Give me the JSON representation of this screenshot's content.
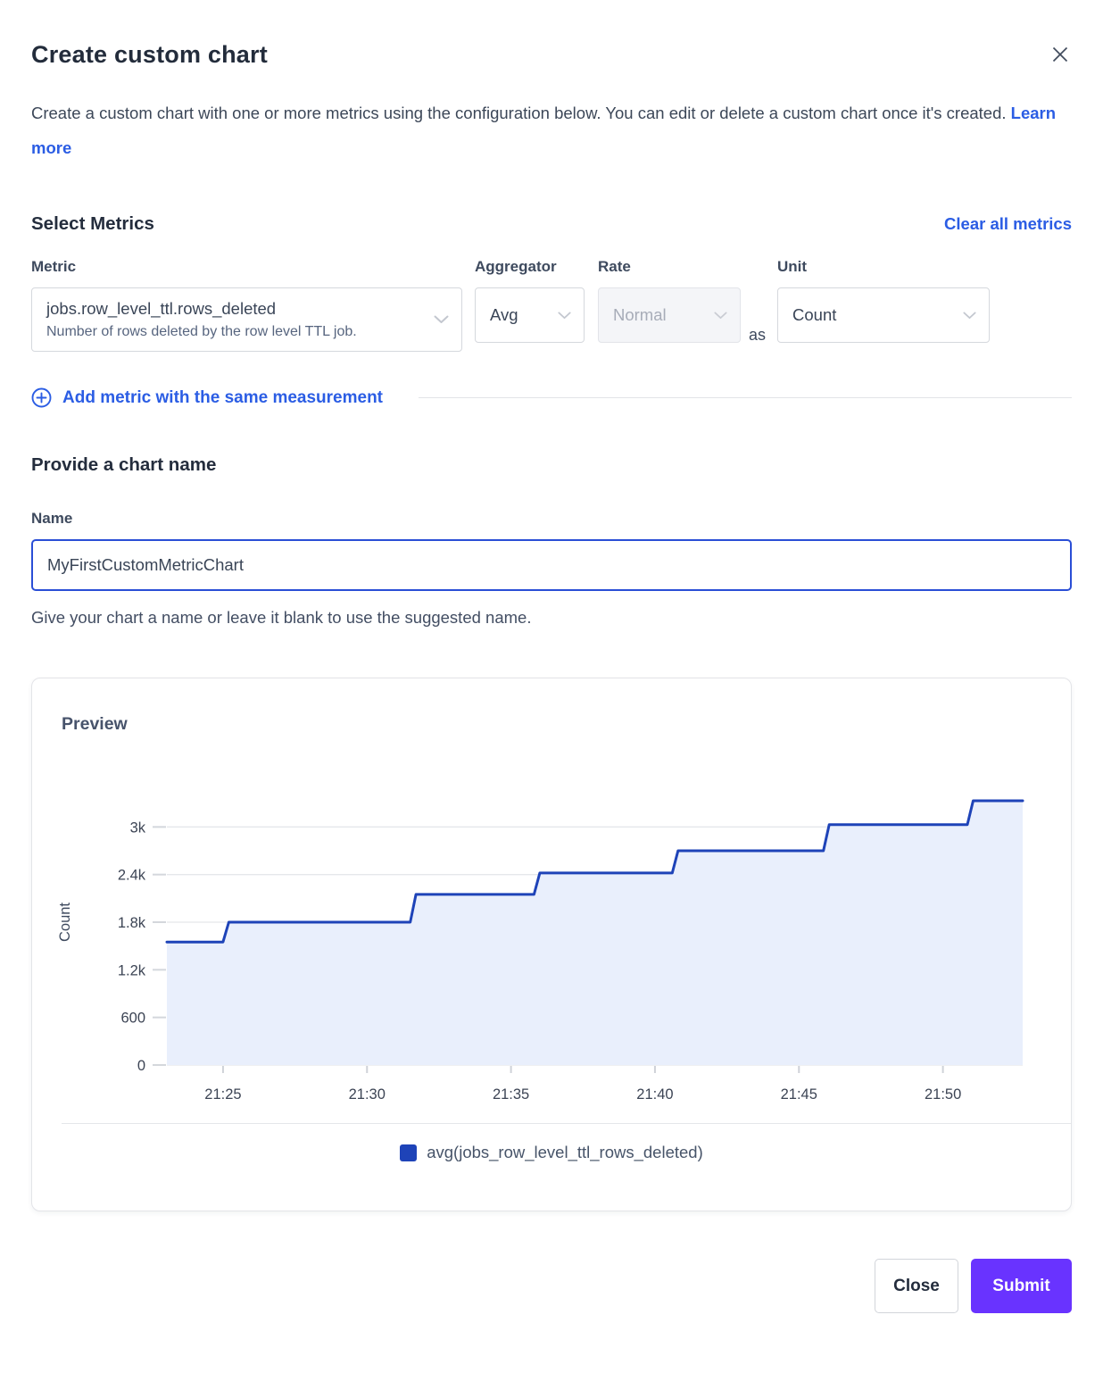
{
  "dialog": {
    "title": "Create custom chart",
    "description": "Create a custom chart with one or more metrics using the configuration below. You can edit or delete a custom chart once it's created.",
    "learn_more_label": "Learn more",
    "close_icon": "close"
  },
  "metrics_section": {
    "heading": "Select Metrics",
    "clear_all_label": "Clear all metrics",
    "metric_label": "Metric",
    "aggregator_label": "Aggregator",
    "rate_label": "Rate",
    "unit_label": "Unit",
    "metric_select": {
      "value": "jobs.row_level_ttl.rows_deleted",
      "description": "Number of rows deleted by the row level TTL job."
    },
    "aggregator_select": {
      "value": "Avg"
    },
    "rate_select": {
      "value": "Normal",
      "disabled": true
    },
    "as_label": "as",
    "unit_select": {
      "value": "Count"
    },
    "add_metric_label": "Add metric with the same measurement"
  },
  "name_section": {
    "heading": "Provide a chart name",
    "label": "Name",
    "value": "MyFirstCustomMetricChart",
    "helper": "Give your chart a name or leave it blank to use the suggested name."
  },
  "preview": {
    "heading": "Preview",
    "legend_label": "avg(jobs_row_level_ttl_rows_deleted)"
  },
  "footer": {
    "close_label": "Close",
    "submit_label": "Submit"
  },
  "colors": {
    "link_blue": "#2b5de4",
    "line_blue": "#1e43b8",
    "area_fill": "#e9effc",
    "submit_purple": "#6933ff",
    "gridline": "#e5e7eb",
    "tick_text": "#3c4454"
  },
  "chart_data": {
    "type": "area",
    "subtype": "step",
    "title": "Preview",
    "xlabel": "",
    "ylabel": "Count",
    "legend_position": "bottom-center",
    "grid": "horizontal",
    "x_domain_minutes_after_2100": [
      23.05,
      52.77
    ],
    "ylim": [
      0,
      3600
    ],
    "y_ticks": [
      {
        "value": 0,
        "label": "0"
      },
      {
        "value": 600,
        "label": "600"
      },
      {
        "value": 1200,
        "label": "1.2k"
      },
      {
        "value": 1800,
        "label": "1.8k"
      },
      {
        "value": 2400,
        "label": "2.4k"
      },
      {
        "value": 3000,
        "label": "3k"
      }
    ],
    "x_ticks": [
      {
        "value": 25,
        "label": "21:25"
      },
      {
        "value": 30,
        "label": "21:30"
      },
      {
        "value": 35,
        "label": "21:35"
      },
      {
        "value": 40,
        "label": "21:40"
      },
      {
        "value": 45,
        "label": "21:45"
      },
      {
        "value": 50,
        "label": "21:50"
      }
    ],
    "series": [
      {
        "name": "avg(jobs_row_level_ttl_rows_deleted)",
        "color": "#1e43b8",
        "fill": "#e9effc",
        "points": [
          [
            23.05,
            1550
          ],
          [
            25.0,
            1550
          ],
          [
            25.2,
            1800
          ],
          [
            31.5,
            1800
          ],
          [
            31.7,
            2150
          ],
          [
            35.8,
            2150
          ],
          [
            36.0,
            2420
          ],
          [
            40.6,
            2420
          ],
          [
            40.8,
            2700
          ],
          [
            45.85,
            2700
          ],
          [
            46.05,
            3030
          ],
          [
            50.85,
            3030
          ],
          [
            51.05,
            3330
          ],
          [
            52.77,
            3330
          ]
        ]
      }
    ]
  }
}
